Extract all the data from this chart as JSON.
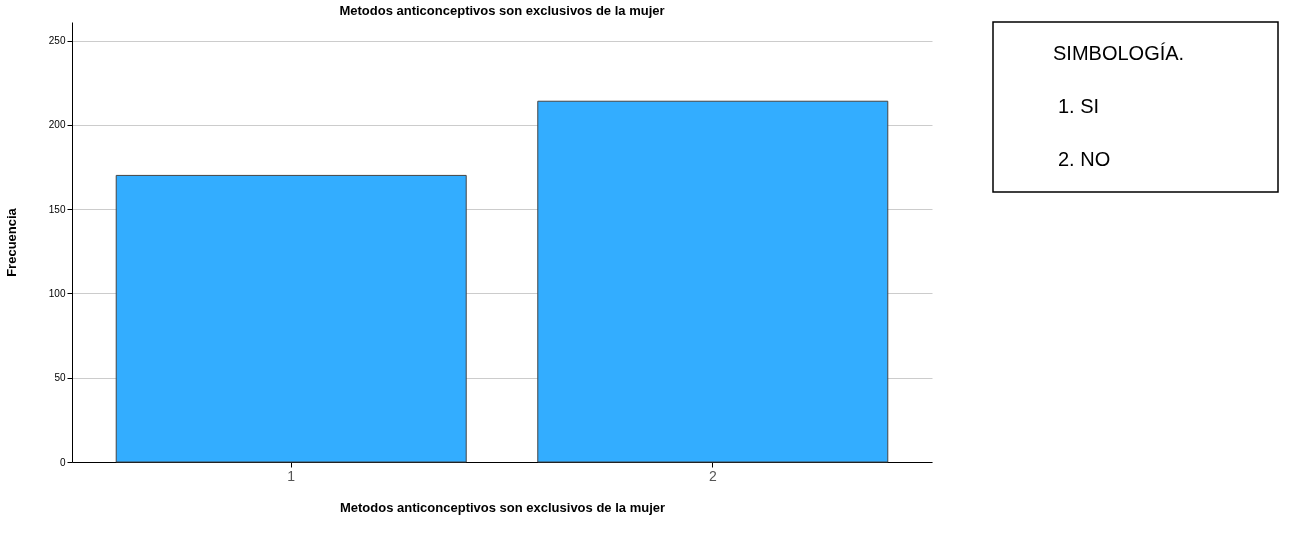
{
  "chart_data": {
    "type": "bar",
    "title": "Metodos anticonceptivos son exclusivos de la mujer",
    "xlabel": "Metodos anticonceptivos son exclusivos de la mujer",
    "ylabel": "Frecuencia",
    "categories": [
      "1",
      "2"
    ],
    "values": [
      170,
      214
    ],
    "color": "#33adff",
    "ylim": [
      0,
      261
    ],
    "yticks": [
      0,
      50,
      100,
      150,
      200,
      250
    ],
    "grid": "y",
    "annotations": [
      "SIMBOLOGÍA.",
      "1.    SI",
      "2.    NO"
    ]
  }
}
